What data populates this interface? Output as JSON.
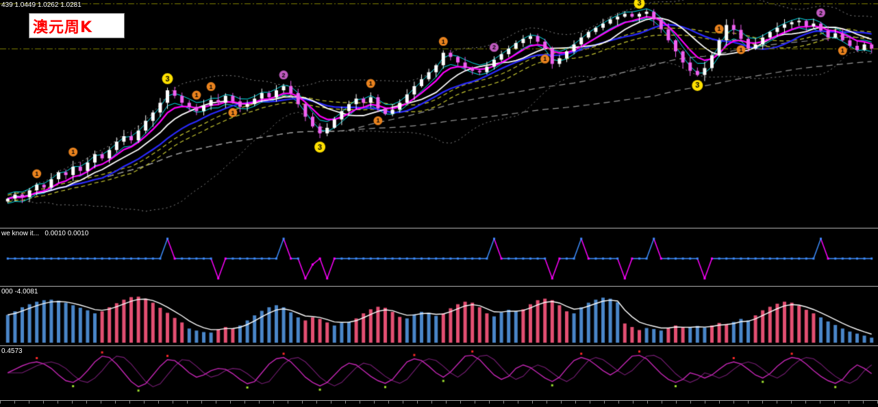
{
  "labels": {
    "title": "澳元周K",
    "ohlc": "439 1.0449 1.0262 1.0281",
    "panel2": "we know it...   0.0010 0.0010",
    "panel3": "000 -4.0081",
    "panel4": "0.4573"
  },
  "colors": {
    "background": "#000000",
    "up_candle": "#FFFFFF",
    "down_candle": "#F060F0",
    "ma_white": "#FFFFFF",
    "ma_magenta": "#FF00FF",
    "ma_blue": "#2A2AFF",
    "ma_cyan": "#00E5EE",
    "ma_yellow": "#C8C832",
    "ma_gray": "#9A9A9A",
    "band_dotted": "#8C8C8C",
    "level_line": "#808000",
    "marker1": "#E8821E",
    "marker2": "#BE5ABE",
    "marker3": "#FFE000",
    "p2_up": "#3E8EFF",
    "p2_down": "#FF00FF",
    "p3_pos": "#4A86C8",
    "p3_neg": "#E34F72",
    "p3_line": "#FFFFFF",
    "p4_main": "#C827B8",
    "p4_signal": "#7A1E78",
    "p4_dot_red": "#FF2A2A",
    "p4_dot_green": "#9FE12F",
    "separator": "#ADADAD",
    "label_text": "#FFFFFF",
    "title_red": "#FF0000"
  },
  "chart_data": [
    {
      "type": "candlestick",
      "title": "澳元周K",
      "ohlc_label": "439 1.0449 1.0262 1.0281",
      "ylim": [
        0.775,
        1.095
      ],
      "levels": [
        1.093,
        1.0281
      ],
      "closes": [
        0.812,
        0.818,
        0.814,
        0.824,
        0.832,
        0.828,
        0.84,
        0.85,
        0.846,
        0.858,
        0.852,
        0.864,
        0.876,
        0.87,
        0.882,
        0.894,
        0.902,
        0.896,
        0.91,
        0.924,
        0.936,
        0.95,
        0.968,
        0.96,
        0.95,
        0.944,
        0.938,
        0.946,
        0.954,
        0.95,
        0.96,
        0.952,
        0.944,
        0.948,
        0.956,
        0.964,
        0.958,
        0.968,
        0.974,
        0.964,
        0.948,
        0.93,
        0.916,
        0.906,
        0.914,
        0.926,
        0.938,
        0.948,
        0.956,
        0.95,
        0.958,
        0.942,
        0.934,
        0.94,
        0.95,
        0.962,
        0.974,
        0.984,
        0.994,
        1.004,
        1.022,
        1.016,
        1.008,
        1.0,
        0.996,
        0.994,
        1.002,
        1.012,
        1.02,
        1.028,
        1.036,
        1.042,
        1.046,
        1.038,
        1.028,
        1.006,
        1.014,
        1.024,
        1.034,
        1.044,
        1.052,
        1.058,
        1.064,
        1.07,
        1.074,
        1.078,
        1.074,
        1.078,
        1.081,
        1.07,
        1.056,
        1.04,
        1.024,
        1.008,
        0.996,
        0.99,
        1.0,
        1.018,
        1.04,
        1.062,
        1.055,
        1.042,
        1.028,
        1.034,
        1.044,
        1.052,
        1.058,
        1.063,
        1.066,
        1.068,
        1.06,
        1.064,
        1.054,
        1.044,
        1.05,
        1.04,
        1.032,
        1.026,
        1.034,
        1.028
      ],
      "overlays": [
        {
          "name": "bollinger-bands",
          "kind": "boll",
          "period": 20,
          "mult": 2,
          "color": "band_dotted",
          "width": 1,
          "dash": [
            2,
            4
          ]
        },
        {
          "name": "long-gray-ma",
          "kind": "sma",
          "period": 90,
          "color": "ma_gray",
          "width": 1.2,
          "dash": [
            9,
            6
          ]
        },
        {
          "name": "mid-gray-ma",
          "kind": "sma",
          "period": 48,
          "color": "ma_gray",
          "width": 1.2,
          "dash": [
            9,
            6
          ]
        },
        {
          "name": "yellow-channel-upper",
          "kind": "sma",
          "period": 18,
          "offset": 0.005,
          "color": "ma_yellow",
          "width": 1.2,
          "dash": [
            6,
            4
          ]
        },
        {
          "name": "yellow-channel-lower",
          "kind": "sma",
          "period": 18,
          "offset": -0.005,
          "color": "ma_yellow",
          "width": 1.2,
          "dash": [
            6,
            4
          ]
        },
        {
          "name": "cyan-upper",
          "kind": "ema",
          "period": 3,
          "offset": 0.007,
          "color": "ma_cyan",
          "width": 1
        },
        {
          "name": "cyan-lower",
          "kind": "ema",
          "period": 3,
          "offset": -0.007,
          "color": "ma_cyan",
          "width": 1
        },
        {
          "name": "blue-ma",
          "kind": "sma",
          "period": 14,
          "color": "ma_blue",
          "width": 2.2
        },
        {
          "name": "white-ma",
          "kind": "sma",
          "period": 9,
          "color": "ma_white",
          "width": 1.8
        },
        {
          "name": "magenta-ma",
          "kind": "ema",
          "period": 6,
          "color": "ma_magenta",
          "width": 2.2
        }
      ],
      "markers": [
        {
          "label": "1",
          "i": 4,
          "pos": "above"
        },
        {
          "label": "1",
          "i": 9,
          "pos": "above"
        },
        {
          "label": "3",
          "i": 22,
          "pos": "above"
        },
        {
          "label": "1",
          "i": 26,
          "pos": "above"
        },
        {
          "label": "1",
          "i": 28,
          "pos": "above"
        },
        {
          "label": "1",
          "i": 31,
          "pos": "below"
        },
        {
          "label": "2",
          "i": 38,
          "pos": "above"
        },
        {
          "label": "3",
          "i": 43,
          "pos": "below"
        },
        {
          "label": "1",
          "i": 50,
          "pos": "above"
        },
        {
          "label": "1",
          "i": 51,
          "pos": "below"
        },
        {
          "label": "1",
          "i": 60,
          "pos": "above"
        },
        {
          "label": "2",
          "i": 67,
          "pos": "above"
        },
        {
          "label": "1",
          "i": 74,
          "pos": "below"
        },
        {
          "label": "3",
          "i": 87,
          "pos": "above"
        },
        {
          "label": "3",
          "i": 95,
          "pos": "below"
        },
        {
          "label": "1",
          "i": 98,
          "pos": "above"
        },
        {
          "label": "1",
          "i": 101,
          "pos": "below"
        },
        {
          "label": "2",
          "i": 112,
          "pos": "above"
        },
        {
          "label": "1",
          "i": 115,
          "pos": "below"
        }
      ]
    },
    {
      "type": "line",
      "label": "we know it...   0.0010 0.0010",
      "ylim": [
        -1.4,
        1.4
      ],
      "values": [
        0,
        0,
        0,
        0,
        0,
        0,
        0,
        0,
        0,
        0,
        0,
        0,
        0,
        0,
        0,
        0,
        0,
        0,
        0,
        0,
        0,
        0,
        1,
        0,
        0,
        0,
        0,
        0,
        0,
        -1,
        0,
        0,
        0,
        0,
        0,
        0,
        0,
        0,
        1,
        0,
        0,
        -1,
        -0.3,
        0,
        -1,
        0,
        0,
        0,
        0,
        0,
        0,
        0,
        0,
        0,
        0,
        0,
        0,
        0,
        0,
        0,
        0,
        0,
        0,
        0,
        0,
        0,
        0,
        1,
        0,
        0,
        0,
        0,
        0,
        0,
        0,
        -1,
        0,
        0,
        0,
        1,
        0,
        0,
        0,
        0,
        0,
        -1,
        0,
        0,
        0,
        1,
        0,
        0,
        0,
        0,
        0,
        0,
        -1,
        0,
        0,
        0,
        0,
        0,
        0,
        0,
        0,
        0,
        0,
        0,
        0,
        0,
        0,
        0,
        1,
        0,
        0,
        0,
        0,
        0,
        0,
        0
      ]
    },
    {
      "type": "bar",
      "label": "000 -4.0081",
      "ylim": [
        0,
        1
      ],
      "values": [
        0.55,
        0.62,
        0.7,
        0.76,
        0.81,
        0.84,
        0.85,
        0.83,
        0.79,
        0.74,
        0.69,
        0.64,
        0.58,
        -0.62,
        -0.7,
        -0.78,
        -0.85,
        -0.9,
        -0.91,
        -0.87,
        -0.79,
        -0.69,
        -0.59,
        -0.49,
        -0.4,
        0.28,
        0.24,
        0.21,
        0.2,
        -0.26,
        -0.31,
        -0.28,
        0.34,
        0.44,
        0.54,
        0.63,
        0.7,
        0.74,
        0.7,
        0.6,
        0.5,
        -0.44,
        -0.5,
        -0.47,
        -0.4,
        0.34,
        0.39,
        0.41,
        -0.48,
        -0.58,
        -0.66,
        -0.71,
        -0.69,
        -0.61,
        -0.51,
        0.48,
        0.56,
        0.61,
        0.59,
        0.53,
        -0.58,
        -0.68,
        -0.76,
        -0.81,
        -0.79,
        -0.7,
        -0.58,
        0.52,
        0.6,
        0.65,
        0.62,
        -0.66,
        -0.76,
        -0.84,
        -0.87,
        -0.84,
        -0.74,
        -0.62,
        0.58,
        0.7,
        0.79,
        0.85,
        0.89,
        0.87,
        0.8,
        -0.38,
        -0.31,
        -0.25,
        0.29,
        0.27,
        0.24,
        -0.29,
        -0.34,
        -0.3,
        0.3,
        0.33,
        0.3,
        -0.34,
        -0.39,
        -0.37,
        0.41,
        0.47,
        0.44,
        -0.54,
        -0.64,
        -0.71,
        -0.77,
        -0.81,
        -0.79,
        -0.73,
        -0.65,
        -0.58,
        0.5,
        0.42,
        0.35,
        0.28,
        0.22,
        0.18,
        0.14,
        0.1
      ]
    },
    {
      "type": "line",
      "label": "0.4573",
      "ylim": [
        0,
        1
      ],
      "values": [
        0.5,
        0.58,
        0.66,
        0.72,
        0.75,
        0.7,
        0.6,
        0.45,
        0.32,
        0.28,
        0.38,
        0.55,
        0.75,
        0.88,
        0.85,
        0.7,
        0.5,
        0.3,
        0.18,
        0.25,
        0.45,
        0.65,
        0.8,
        0.78,
        0.65,
        0.5,
        0.4,
        0.45,
        0.55,
        0.6,
        0.58,
        0.48,
        0.35,
        0.25,
        0.3,
        0.5,
        0.7,
        0.82,
        0.85,
        0.75,
        0.58,
        0.4,
        0.28,
        0.2,
        0.28,
        0.45,
        0.62,
        0.72,
        0.68,
        0.55,
        0.42,
        0.32,
        0.26,
        0.35,
        0.55,
        0.75,
        0.82,
        0.78,
        0.65,
        0.5,
        0.4,
        0.52,
        0.7,
        0.88,
        0.9,
        0.8,
        0.62,
        0.45,
        0.35,
        0.42,
        0.6,
        0.68,
        0.62,
        0.5,
        0.38,
        0.3,
        0.4,
        0.6,
        0.78,
        0.85,
        0.8,
        0.68,
        0.55,
        0.45,
        0.55,
        0.72,
        0.88,
        0.9,
        0.82,
        0.65,
        0.48,
        0.35,
        0.28,
        0.35,
        0.5,
        0.45,
        0.38,
        0.45,
        0.58,
        0.7,
        0.75,
        0.7,
        0.58,
        0.45,
        0.38,
        0.48,
        0.65,
        0.78,
        0.85,
        0.82,
        0.7,
        0.55,
        0.42,
        0.32,
        0.26,
        0.35,
        0.55,
        0.68,
        0.6,
        0.48
      ],
      "dots_red": [
        4,
        13,
        22,
        38,
        56,
        64,
        79,
        87,
        100,
        108
      ],
      "dots_green": [
        9,
        18,
        33,
        43,
        52,
        60,
        75,
        92,
        104,
        114
      ]
    }
  ]
}
